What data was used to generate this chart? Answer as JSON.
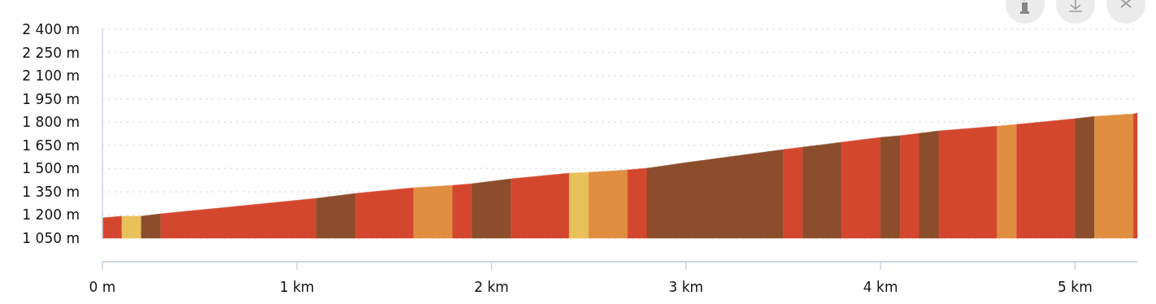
{
  "chart_data": {
    "type": "area",
    "xlim": [
      0,
      5.32
    ],
    "xticks": [
      {
        "value": 0,
        "label": "0 m"
      },
      {
        "value": 1,
        "label": "1 km"
      },
      {
        "value": 2,
        "label": "2 km"
      },
      {
        "value": 3,
        "label": "3 km"
      },
      {
        "value": 4,
        "label": "4 km"
      },
      {
        "value": 5,
        "label": "5 km"
      }
    ],
    "ylim": [
      1050,
      2400
    ],
    "yticks": [
      {
        "value": 1050,
        "label": "1 050 m"
      },
      {
        "value": 1200,
        "label": "1 200 m"
      },
      {
        "value": 1350,
        "label": "1 350 m"
      },
      {
        "value": 1500,
        "label": "1 500 m"
      },
      {
        "value": 1650,
        "label": "1 650 m"
      },
      {
        "value": 1800,
        "label": "1 800 m"
      },
      {
        "value": 1950,
        "label": "1 950 m"
      },
      {
        "value": 2100,
        "label": "2 100 m"
      },
      {
        "value": 2250,
        "label": "2 250 m"
      },
      {
        "value": 2400,
        "label": "2 400 m"
      }
    ],
    "grid": "y",
    "series": [
      {
        "color": "#d4472f",
        "x": [
          0,
          0.1
        ],
        "values": [
          1181,
          1192
        ]
      },
      {
        "color": "#e8c15a",
        "x": [
          0.1,
          0.2
        ],
        "values": [
          1192,
          1192
        ]
      },
      {
        "color": "#8b4d2b",
        "x": [
          0.2,
          0.3
        ],
        "values": [
          1192,
          1207
        ]
      },
      {
        "color": "#d4472f",
        "x": [
          0.3,
          1.1
        ],
        "values": [
          1207,
          1307
        ]
      },
      {
        "color": "#8b4d2b",
        "x": [
          1.1,
          1.3
        ],
        "values": [
          1307,
          1339
        ]
      },
      {
        "color": "#d4472f",
        "x": [
          1.3,
          1.6
        ],
        "values": [
          1339,
          1376
        ]
      },
      {
        "color": "#e08e40",
        "x": [
          1.6,
          1.8
        ],
        "values": [
          1376,
          1391
        ]
      },
      {
        "color": "#d4472f",
        "x": [
          1.8,
          1.9
        ],
        "values": [
          1391,
          1402
        ]
      },
      {
        "color": "#8b4d2b",
        "x": [
          1.9,
          2.1
        ],
        "values": [
          1402,
          1433
        ]
      },
      {
        "color": "#d4472f",
        "x": [
          2.1,
          2.4
        ],
        "values": [
          1433,
          1470
        ]
      },
      {
        "color": "#e8c15a",
        "x": [
          2.4,
          2.5
        ],
        "values": [
          1470,
          1475
        ]
      },
      {
        "color": "#e08e40",
        "x": [
          2.5,
          2.7
        ],
        "values": [
          1475,
          1491
        ]
      },
      {
        "color": "#d4472f",
        "x": [
          2.7,
          2.8
        ],
        "values": [
          1491,
          1502
        ]
      },
      {
        "color": "#8b4d2b",
        "x": [
          2.8,
          3.0,
          3.5
        ],
        "values": [
          1502,
          1538,
          1622
        ]
      },
      {
        "color": "#d4472f",
        "x": [
          3.5,
          3.6
        ],
        "values": [
          1622,
          1638
        ]
      },
      {
        "color": "#8b4d2b",
        "x": [
          3.6,
          3.8
        ],
        "values": [
          1638,
          1670
        ]
      },
      {
        "color": "#d4472f",
        "x": [
          3.8,
          4.0
        ],
        "values": [
          1670,
          1701
        ]
      },
      {
        "color": "#8b4d2b",
        "x": [
          4.0,
          4.1
        ],
        "values": [
          1701,
          1712
        ]
      },
      {
        "color": "#d4472f",
        "x": [
          4.1,
          4.2
        ],
        "values": [
          1712,
          1727
        ]
      },
      {
        "color": "#8b4d2b",
        "x": [
          4.2,
          4.3
        ],
        "values": [
          1727,
          1743
        ]
      },
      {
        "color": "#d4472f",
        "x": [
          4.3,
          4.6
        ],
        "values": [
          1743,
          1774
        ]
      },
      {
        "color": "#e08e40",
        "x": [
          4.6,
          4.7
        ],
        "values": [
          1774,
          1785
        ]
      },
      {
        "color": "#d4472f",
        "x": [
          4.7,
          5.0
        ],
        "values": [
          1785,
          1822
        ]
      },
      {
        "color": "#8b4d2b",
        "x": [
          5.0,
          5.1
        ],
        "values": [
          1822,
          1837
        ]
      },
      {
        "color": "#e08e40",
        "x": [
          5.1,
          5.3
        ],
        "values": [
          1837,
          1853
        ]
      },
      {
        "color": "#d4472f",
        "x": [
          5.3,
          5.32
        ],
        "values": [
          1853,
          1858
        ]
      }
    ]
  }
}
